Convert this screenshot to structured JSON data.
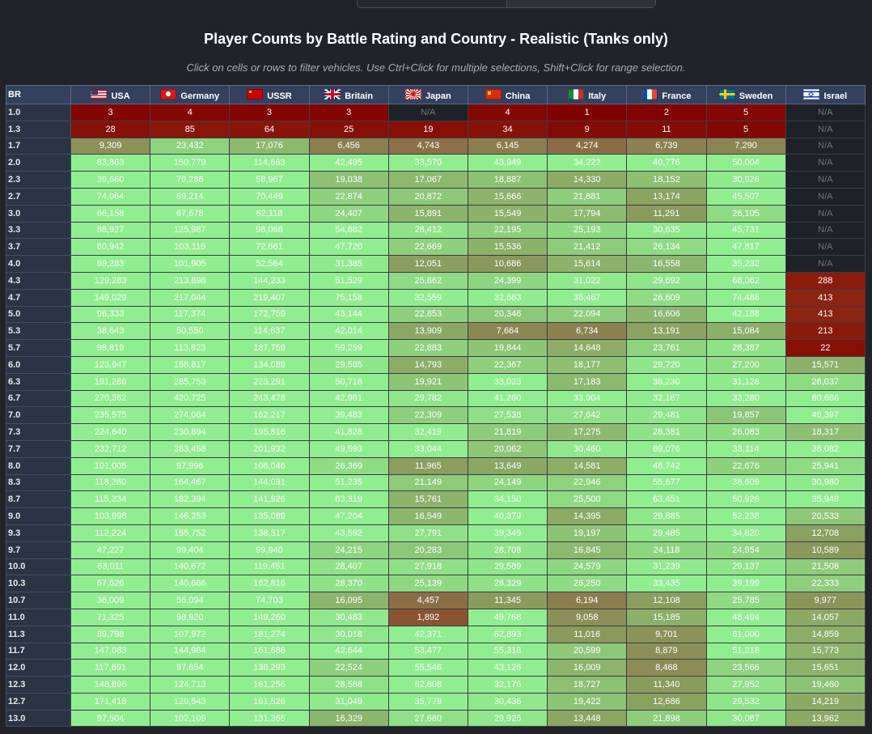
{
  "title": "Player Counts by Battle Rating and Country - Realistic (Tanks only)",
  "subtitle": "Click on cells or rows to filter vehicles. Use Ctrl+Click for multiple selections, Shift+Click for range selection.",
  "br_header": "BR",
  "na_label": "N/A",
  "colors": {
    "scale": [
      "#800000",
      "#8b4a2b",
      "#8b7d4e",
      "#90ee90"
    ],
    "na": "#1e2127",
    "header": "#33415e"
  },
  "chart_data": {
    "type": "heatmap",
    "title": "Player Counts by Battle Rating and Country - Realistic (Tanks only)",
    "columns": [
      {
        "name": "USA",
        "flag": "usa-flag-icon"
      },
      {
        "name": "Germany",
        "flag": "germany-flag-icon"
      },
      {
        "name": "USSR",
        "flag": "ussr-flag-icon"
      },
      {
        "name": "Britain",
        "flag": "britain-flag-icon"
      },
      {
        "name": "Japan",
        "flag": "japan-flag-icon"
      },
      {
        "name": "China",
        "flag": "china-flag-icon"
      },
      {
        "name": "Italy",
        "flag": "italy-flag-icon"
      },
      {
        "name": "France",
        "flag": "france-flag-icon"
      },
      {
        "name": "Sweden",
        "flag": "sweden-flag-icon"
      },
      {
        "name": "Israel",
        "flag": "israel-flag-icon"
      }
    ],
    "rows": [
      {
        "br": "1.0",
        "values": [
          3,
          4,
          3,
          3,
          null,
          4,
          1,
          2,
          5,
          null
        ]
      },
      {
        "br": "1.3",
        "values": [
          28,
          85,
          64,
          25,
          19,
          34,
          9,
          11,
          5,
          null
        ]
      },
      {
        "br": "1.7",
        "values": [
          9309,
          23432,
          17076,
          6456,
          4743,
          6145,
          4274,
          6739,
          7290,
          null
        ]
      },
      {
        "br": "2.0",
        "values": [
          83863,
          150779,
          114663,
          42495,
          33570,
          43949,
          34222,
          40776,
          50004,
          null
        ]
      },
      {
        "br": "2.3",
        "values": [
          39660,
          79286,
          58967,
          19038,
          17067,
          18887,
          14330,
          18152,
          30926,
          null
        ]
      },
      {
        "br": "2.7",
        "values": [
          74064,
          69214,
          70449,
          22874,
          20872,
          15666,
          21881,
          13174,
          45507,
          null
        ]
      },
      {
        "br": "3.0",
        "values": [
          66158,
          67678,
          62118,
          24407,
          15891,
          15549,
          17794,
          11291,
          26105,
          null
        ]
      },
      {
        "br": "3.3",
        "values": [
          88927,
          125987,
          98068,
          54682,
          28412,
          22195,
          25193,
          30635,
          45731,
          null
        ]
      },
      {
        "br": "3.7",
        "values": [
          80942,
          103119,
          72661,
          47720,
          22669,
          15536,
          21412,
          26134,
          47817,
          null
        ]
      },
      {
        "br": "4.0",
        "values": [
          69283,
          101905,
          52564,
          31385,
          12051,
          10686,
          15614,
          16558,
          35232,
          null
        ]
      },
      {
        "br": "4.3",
        "values": [
          129283,
          213898,
          144233,
          51529,
          25862,
          24399,
          31022,
          29692,
          68062,
          288
        ]
      },
      {
        "br": "4.7",
        "values": [
          149029,
          217044,
          219407,
          75158,
          32559,
          32663,
          36467,
          26609,
          74486,
          413
        ]
      },
      {
        "br": "5.0",
        "values": [
          96333,
          117374,
          172759,
          43144,
          22853,
          20346,
          22094,
          16606,
          42188,
          413
        ]
      },
      {
        "br": "5.3",
        "values": [
          38643,
          50550,
          114637,
          42014,
          13909,
          7664,
          6734,
          13191,
          15084,
          213
        ]
      },
      {
        "br": "5.7",
        "values": [
          98819,
          113823,
          187759,
          59259,
          22883,
          19844,
          14648,
          23761,
          28387,
          22
        ]
      },
      {
        "br": "6.0",
        "values": [
          123947,
          158817,
          134089,
          29565,
          14793,
          22367,
          18177,
          29720,
          27200,
          15571
        ]
      },
      {
        "br": "6.3",
        "values": [
          191286,
          285753,
          223291,
          50716,
          19921,
          33023,
          17183,
          38230,
          31128,
          26037
        ]
      },
      {
        "br": "6.7",
        "values": [
          270362,
          420725,
          243478,
          42961,
          29782,
          41260,
          33904,
          32187,
          33280,
          60686
        ]
      },
      {
        "br": "7.0",
        "values": [
          235575,
          274064,
          162217,
          39483,
          22309,
          27538,
          27642,
          29481,
          19857,
          49397
        ]
      },
      {
        "br": "7.3",
        "values": [
          224640,
          230894,
          195816,
          41828,
          32419,
          21819,
          17275,
          28381,
          26083,
          18317
        ]
      },
      {
        "br": "7.7",
        "values": [
          232712,
          283458,
          201932,
          49593,
          33044,
          20062,
          30460,
          69076,
          33114,
          38082
        ]
      },
      {
        "br": "8.0",
        "values": [
          101005,
          97996,
          108046,
          26369,
          11965,
          13649,
          14581,
          48742,
          22676,
          25941
        ]
      },
      {
        "br": "8.3",
        "values": [
          118280,
          164467,
          144031,
          51235,
          21149,
          24149,
          22946,
          55677,
          38609,
          30980
        ]
      },
      {
        "br": "8.7",
        "values": [
          115234,
          182394,
          141926,
          63319,
          15761,
          34150,
          25500,
          63451,
          50926,
          35948
        ]
      },
      {
        "br": "9.0",
        "values": [
          103998,
          146253,
          135069,
          47204,
          16549,
          40379,
          14395,
          29885,
          52238,
          20533
        ]
      },
      {
        "br": "9.3",
        "values": [
          112224,
          155752,
          138517,
          43592,
          27791,
          39349,
          19197,
          29485,
          34820,
          12708
        ]
      },
      {
        "br": "9.7",
        "values": [
          47227,
          99404,
          99940,
          24215,
          20283,
          28708,
          16845,
          24118,
          24954,
          10589
        ]
      },
      {
        "br": "10.0",
        "values": [
          63011,
          140672,
          119451,
          28407,
          27918,
          29589,
          24579,
          31239,
          29137,
          21508
        ]
      },
      {
        "br": "10.3",
        "values": [
          67626,
          140686,
          162816,
          28370,
          25139,
          28329,
          26250,
          33435,
          39199,
          22333
        ]
      },
      {
        "br": "10.7",
        "values": [
          36009,
          56094,
          74703,
          16095,
          4457,
          11345,
          6194,
          12108,
          25785,
          9977
        ]
      },
      {
        "br": "11.0",
        "values": [
          71325,
          98920,
          149260,
          30483,
          1892,
          49768,
          9058,
          15185,
          48494,
          14057
        ]
      },
      {
        "br": "11.3",
        "values": [
          89798,
          107972,
          181274,
          30018,
          42371,
          62893,
          11016,
          9701,
          61000,
          14859
        ]
      },
      {
        "br": "11.7",
        "values": [
          147083,
          144984,
          161686,
          42644,
          53477,
          55318,
          20599,
          8879,
          51218,
          15773
        ]
      },
      {
        "br": "12.0",
        "values": [
          117691,
          97654,
          138293,
          22524,
          55546,
          43126,
          16009,
          8468,
          23566,
          15651
        ]
      },
      {
        "br": "12.3",
        "values": [
          148896,
          124713,
          161256,
          28588,
          62808,
          32176,
          18727,
          11340,
          27952,
          19460
        ]
      },
      {
        "br": "12.7",
        "values": [
          171418,
          129543,
          161526,
          31049,
          35779,
          30436,
          19422,
          12686,
          29532,
          14219
        ]
      },
      {
        "br": "13.0",
        "values": [
          97504,
          102109,
          131365,
          16329,
          27680,
          29926,
          13448,
          21898,
          30087,
          13962
        ]
      }
    ]
  }
}
